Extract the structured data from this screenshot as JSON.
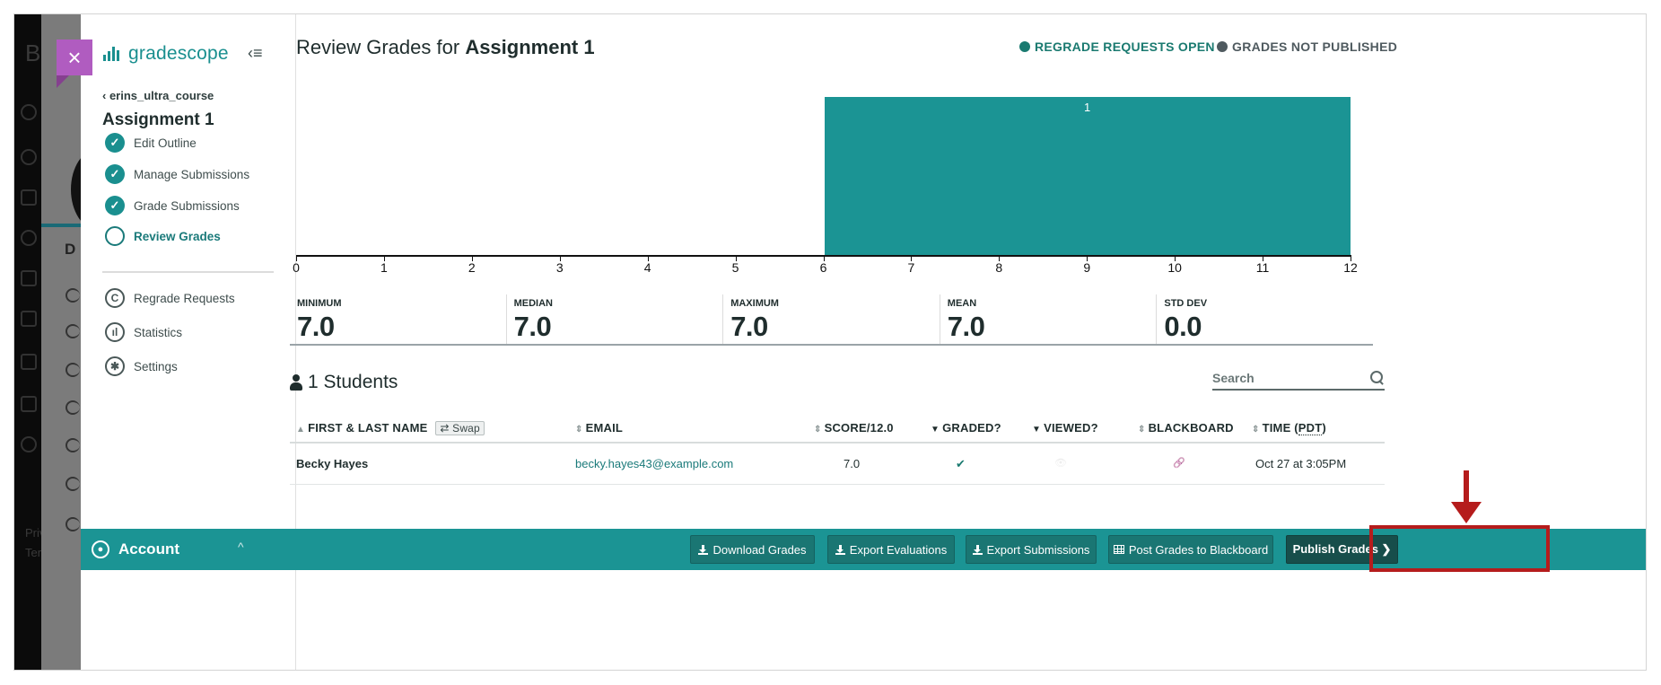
{
  "app": {
    "brand": "gradescope",
    "close_label": "×",
    "collapse_label": "‹≡"
  },
  "background": {
    "left_texts": [
      "B",
      "D",
      "Priv",
      "Ter"
    ]
  },
  "sidebar": {
    "course_link": "‹ erins_ultra_course",
    "assignment_title": "Assignment 1",
    "steps": [
      {
        "label": "Edit Outline",
        "state": "done"
      },
      {
        "label": "Manage Submissions",
        "state": "done"
      },
      {
        "label": "Grade Submissions",
        "state": "done"
      },
      {
        "label": "Review Grades",
        "state": "current"
      }
    ],
    "tools": [
      {
        "label": "Regrade Requests",
        "icon": "regrade-icon",
        "glyph": "C"
      },
      {
        "label": "Statistics",
        "icon": "statistics-icon",
        "glyph": "ıl"
      },
      {
        "label": "Settings",
        "icon": "gear-icon",
        "glyph": "✱"
      }
    ],
    "account": {
      "label": "Account",
      "chevron": "^"
    }
  },
  "header": {
    "title_prefix": "Review Grades for",
    "title_assignment": "Assignment 1",
    "status": [
      {
        "label": "REGRADE REQUESTS OPEN",
        "color": "#1a7a70"
      },
      {
        "label": "GRADES NOT PUBLISHED",
        "color": "#4f5a5f"
      }
    ]
  },
  "chart_data": {
    "type": "bar",
    "title": "",
    "xlabel": "",
    "ylabel": "",
    "x_ticks": [
      0,
      1,
      2,
      3,
      4,
      5,
      6,
      7,
      8,
      9,
      10,
      11,
      12
    ],
    "xlim": [
      0,
      12
    ],
    "bins": [
      {
        "range": [
          6,
          12
        ],
        "count": 1,
        "label": "1"
      }
    ],
    "bar_color": "#1b9494",
    "grid": false,
    "legend": null
  },
  "stats": [
    {
      "label": "MINIMUM",
      "value": "7.0"
    },
    {
      "label": "MEDIAN",
      "value": "7.0"
    },
    {
      "label": "MAXIMUM",
      "value": "7.0"
    },
    {
      "label": "MEAN",
      "value": "7.0"
    },
    {
      "label": "STD DEV",
      "value": "0.0"
    }
  ],
  "students": {
    "heading": "1 Students",
    "search_placeholder": "Search",
    "columns": {
      "name": "FIRST & LAST NAME",
      "swap": "⇄ Swap",
      "email": "EMAIL",
      "score": "SCORE/12.0",
      "graded": "GRADED?",
      "viewed": "VIEWED?",
      "blackboard": "BLACKBOARD",
      "time_prefix": "TIME (",
      "time_tz": "PDT",
      "time_suffix": ")"
    },
    "rows": [
      {
        "name": "Becky Hayes",
        "email": "becky.hayes43@example.com",
        "score": "7.0",
        "graded": "✔",
        "viewed": "👁",
        "blackboard": "🔗",
        "time": "Oct 27 at 3:05PM"
      }
    ]
  },
  "actions": {
    "download_grades": "Download Grades",
    "export_evaluations": "Export Evaluations",
    "export_submissions": "Export Submissions",
    "post_to_blackboard": "Post Grades to Blackboard",
    "publish_grades": "Publish Grades ❯"
  },
  "colors": {
    "accent": "#1b9494",
    "annotation": "#b51c1c",
    "close_button": "#b05cc0"
  }
}
